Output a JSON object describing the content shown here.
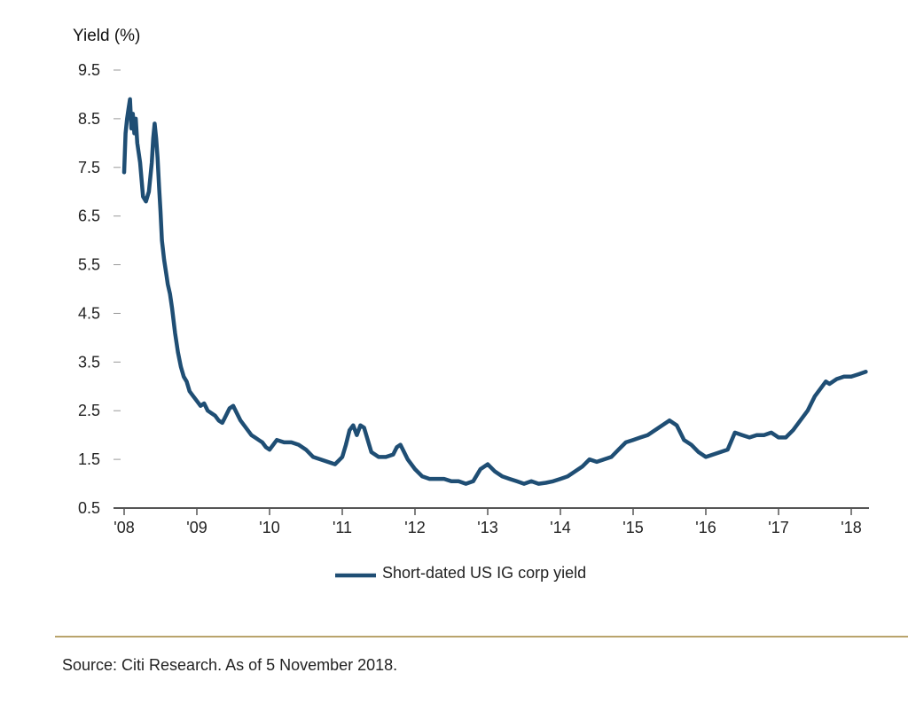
{
  "colors": {
    "line": "#1f4e74",
    "axis": "#555555",
    "divider": "#b9a46c"
  },
  "chart_data": {
    "type": "line",
    "ylabel": "Yield (%)",
    "ylim": [
      0.5,
      9.5
    ],
    "yticks": [
      "9.5",
      "8.5",
      "7.5",
      "6.5",
      "5.5",
      "4.5",
      "3.5",
      "2.5",
      "1.5",
      "0.5"
    ],
    "xlim": [
      2008,
      2018.3
    ],
    "xticks": [
      {
        "label": "'08",
        "value": 2008
      },
      {
        "label": "'09",
        "value": 2009
      },
      {
        "label": "'10",
        "value": 2010
      },
      {
        "label": "'11",
        "value": 2011
      },
      {
        "label": "'12",
        "value": 2012
      },
      {
        "label": "'13",
        "value": 2013
      },
      {
        "label": "'14",
        "value": 2014
      },
      {
        "label": "'15",
        "value": 2015
      },
      {
        "label": "'16",
        "value": 2016
      },
      {
        "label": "'17",
        "value": 2017
      },
      {
        "label": "'18",
        "value": 2018
      }
    ],
    "series": [
      {
        "name": "Short-dated US IG corp yield",
        "x": [
          2008.0,
          2008.02,
          2008.04,
          2008.06,
          2008.08,
          2008.1,
          2008.12,
          2008.14,
          2008.16,
          2008.18,
          2008.22,
          2008.26,
          2008.3,
          2008.34,
          2008.38,
          2008.4,
          2008.42,
          2008.44,
          2008.46,
          2008.48,
          2008.5,
          2008.52,
          2008.55,
          2008.58,
          2008.6,
          2008.63,
          2008.66,
          2008.7,
          2008.74,
          2008.78,
          2008.82,
          2008.86,
          2008.9,
          2008.95,
          2009.0,
          2009.05,
          2009.1,
          2009.15,
          2009.2,
          2009.25,
          2009.3,
          2009.35,
          2009.4,
          2009.45,
          2009.5,
          2009.55,
          2009.6,
          2009.65,
          2009.7,
          2009.75,
          2009.8,
          2009.85,
          2009.9,
          2009.95,
          2010.0,
          2010.1,
          2010.2,
          2010.3,
          2010.4,
          2010.5,
          2010.6,
          2010.7,
          2010.8,
          2010.9,
          2011.0,
          2011.05,
          2011.1,
          2011.15,
          2011.2,
          2011.25,
          2011.3,
          2011.35,
          2011.4,
          2011.5,
          2011.6,
          2011.7,
          2011.75,
          2011.8,
          2011.9,
          2012.0,
          2012.1,
          2012.2,
          2012.3,
          2012.4,
          2012.5,
          2012.6,
          2012.7,
          2012.8,
          2012.9,
          2013.0,
          2013.1,
          2013.2,
          2013.3,
          2013.4,
          2013.5,
          2013.6,
          2013.7,
          2013.8,
          2013.9,
          2014.0,
          2014.1,
          2014.2,
          2014.3,
          2014.4,
          2014.5,
          2014.6,
          2014.7,
          2014.8,
          2014.9,
          2015.0,
          2015.1,
          2015.2,
          2015.3,
          2015.4,
          2015.5,
          2015.6,
          2015.7,
          2015.8,
          2015.9,
          2016.0,
          2016.1,
          2016.2,
          2016.3,
          2016.4,
          2016.5,
          2016.6,
          2016.7,
          2016.8,
          2016.9,
          2017.0,
          2017.1,
          2017.2,
          2017.3,
          2017.4,
          2017.5,
          2017.55,
          2017.6,
          2017.65,
          2017.7,
          2017.8,
          2017.9,
          2018.0,
          2018.1,
          2018.2
        ],
        "values": [
          7.4,
          8.2,
          8.5,
          8.7,
          8.9,
          8.3,
          8.6,
          8.2,
          8.5,
          8.0,
          7.6,
          6.9,
          6.8,
          7.0,
          7.6,
          8.1,
          8.4,
          8.1,
          7.7,
          7.1,
          6.6,
          6.0,
          5.6,
          5.3,
          5.1,
          4.9,
          4.6,
          4.1,
          3.7,
          3.4,
          3.2,
          3.1,
          2.9,
          2.8,
          2.7,
          2.6,
          2.65,
          2.5,
          2.45,
          2.4,
          2.3,
          2.25,
          2.4,
          2.55,
          2.6,
          2.45,
          2.3,
          2.2,
          2.1,
          2.0,
          1.95,
          1.9,
          1.85,
          1.75,
          1.7,
          1.9,
          1.85,
          1.85,
          1.8,
          1.7,
          1.55,
          1.5,
          1.45,
          1.4,
          1.55,
          1.8,
          2.1,
          2.2,
          2.0,
          2.2,
          2.15,
          1.9,
          1.65,
          1.55,
          1.55,
          1.6,
          1.75,
          1.8,
          1.5,
          1.3,
          1.15,
          1.1,
          1.1,
          1.1,
          1.05,
          1.05,
          1.0,
          1.05,
          1.3,
          1.4,
          1.25,
          1.15,
          1.1,
          1.05,
          1.0,
          1.05,
          1.0,
          1.02,
          1.05,
          1.1,
          1.15,
          1.25,
          1.35,
          1.5,
          1.45,
          1.5,
          1.55,
          1.7,
          1.85,
          1.9,
          1.95,
          2.0,
          2.1,
          2.2,
          2.3,
          2.2,
          1.9,
          1.8,
          1.65,
          1.55,
          1.6,
          1.65,
          1.7,
          2.05,
          2.0,
          1.95,
          2.0,
          2.0,
          2.05,
          1.95,
          1.95,
          2.1,
          2.3,
          2.5,
          2.8,
          2.9,
          3.0,
          3.1,
          3.05,
          3.15,
          3.2,
          3.2,
          3.25,
          3.3
        ]
      }
    ],
    "legend_position": "bottom-center",
    "grid": false
  },
  "source_note": "Source: Citi Research. As of 5 November 2018."
}
